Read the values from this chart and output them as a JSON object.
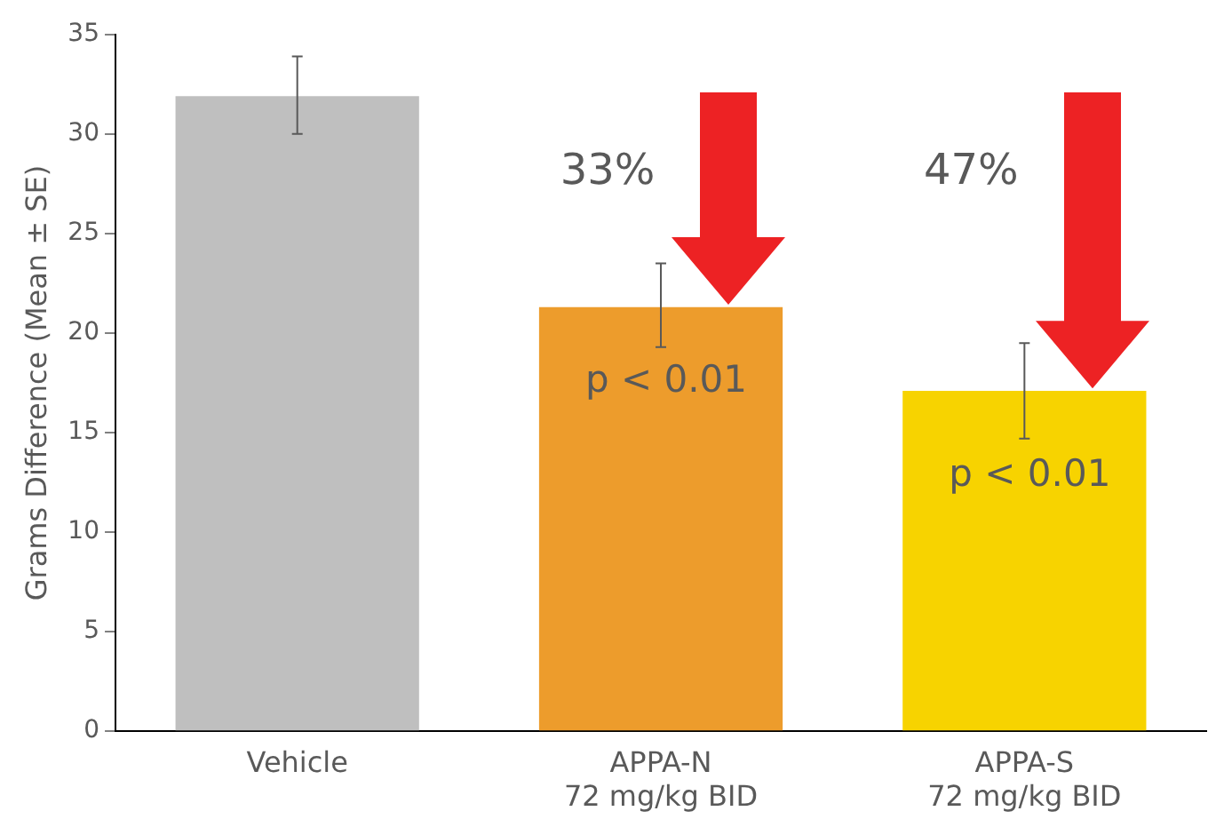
{
  "chart_data": {
    "type": "bar",
    "ylabel": "Grams Difference (Mean ± SE)",
    "categories": [
      "Vehicle",
      "APPA-N\n72 mg/kg BID",
      "APPA-S\n72 mg/kg BID"
    ],
    "values": [
      31.9,
      21.3,
      17.1
    ],
    "colors": [
      "#bfbfbf",
      "#ed9c2c",
      "#f7d300"
    ],
    "errors": [
      [
        30.0,
        33.9
      ],
      [
        19.3,
        23.5
      ],
      [
        14.7,
        19.5
      ]
    ],
    "ylim": [
      0,
      35
    ],
    "yticks": [
      0,
      5,
      10,
      15,
      20,
      25,
      30,
      35
    ],
    "grid": false,
    "legend": false,
    "annotations": [
      "33%",
      "p < 0.01",
      "47%",
      "p < 0.01"
    ]
  }
}
